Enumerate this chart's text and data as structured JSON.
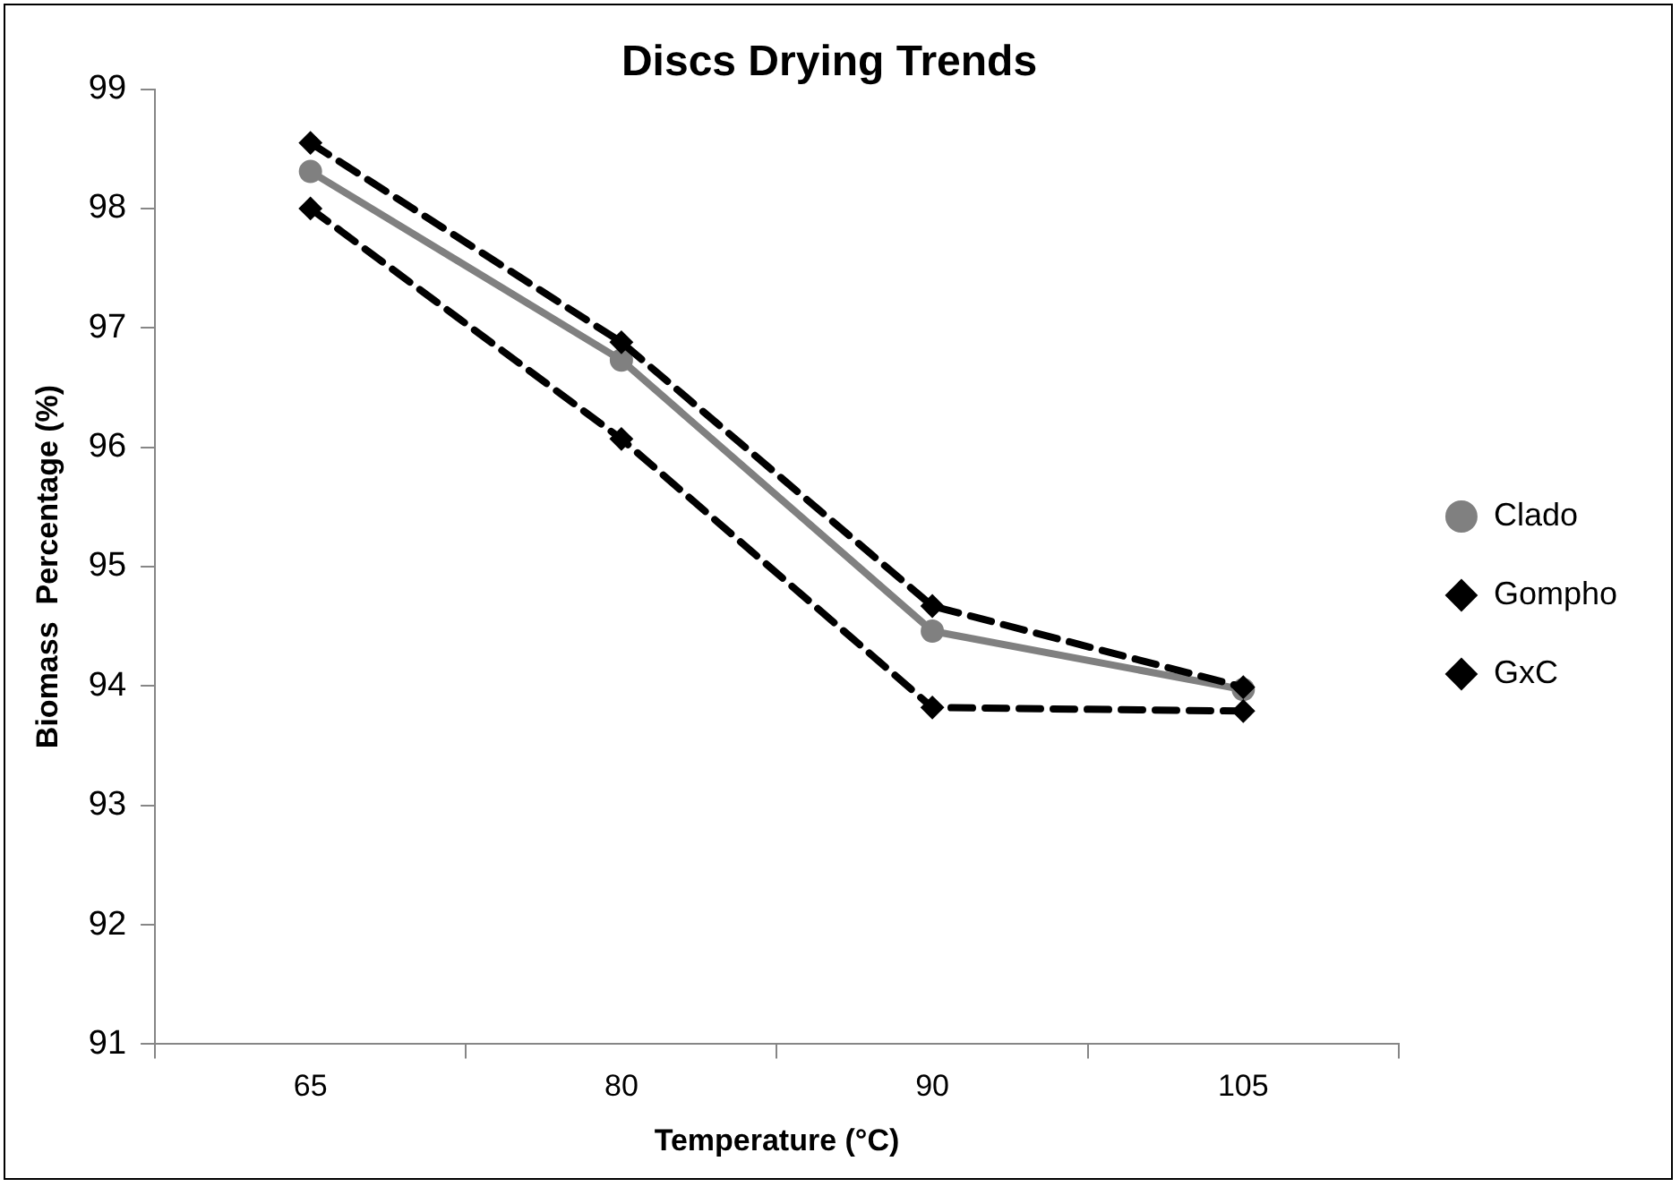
{
  "chart_data": {
    "type": "line",
    "title": "Discs Drying Trends",
    "xlabel": "Temperature (°C)",
    "ylabel": "Biomass  Percentage (%)",
    "categories": [
      "65",
      "80",
      "90",
      "105"
    ],
    "series": [
      {
        "name": "Clado",
        "color": "#808080",
        "values": [
          98.31,
          96.73,
          94.46,
          93.97
        ],
        "marker": "circle",
        "line_style": "solid"
      },
      {
        "name": "Gompho",
        "color": "#000000",
        "values": [
          98.0,
          96.07,
          93.82,
          93.79
        ],
        "marker": "diamond",
        "line_style": "dashed"
      },
      {
        "name": "GxC",
        "color": "#000000",
        "values": [
          98.55,
          96.88,
          94.67,
          93.99
        ],
        "marker": "diamond",
        "line_style": "dashed"
      }
    ],
    "ylim": [
      91,
      99
    ],
    "yticks": [
      91,
      92,
      93,
      94,
      95,
      96,
      97,
      98,
      99
    ],
    "grid": false,
    "legend": "right"
  }
}
